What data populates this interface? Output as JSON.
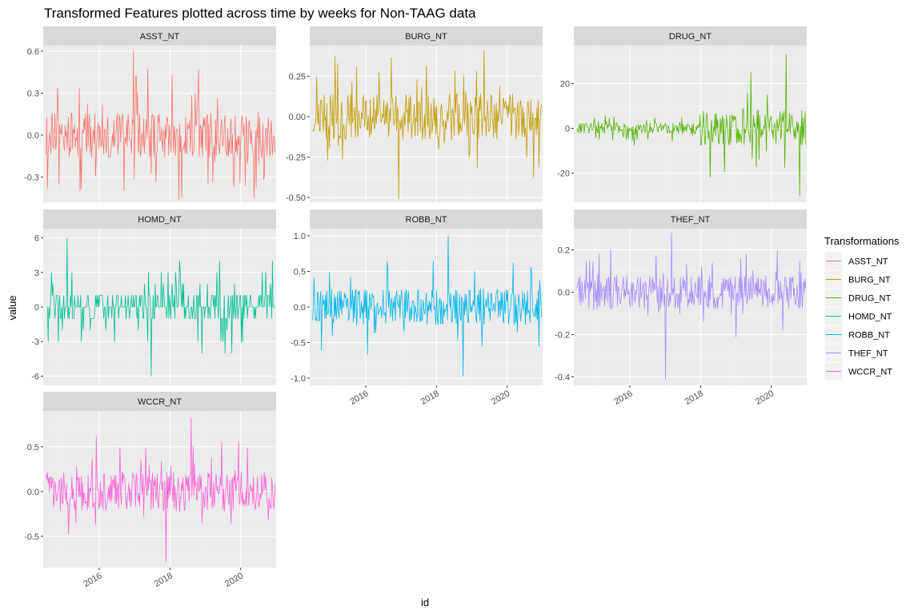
{
  "chart_data": {
    "type": "line",
    "title": "Transformed Features plotted across time by weeks for Non-TAAG data",
    "xlabel": "id",
    "ylabel": "value",
    "x_range": [
      "2014-06-01",
      "2021-01-01"
    ],
    "x_ticks": [
      {
        "date": "2016-01-01",
        "label": "2016"
      },
      {
        "date": "2018-01-01",
        "label": "2018"
      },
      {
        "date": "2020-01-01",
        "label": "2020"
      }
    ],
    "grid": true,
    "legend": {
      "title": "Transformations",
      "position": "right"
    },
    "facets": [
      {
        "name": "ASST_NT",
        "color": "#F8766D",
        "ylim": [
          -0.48,
          0.64
        ],
        "yticks": [
          {
            "v": -0.3,
            "label": "-0.3"
          },
          {
            "v": 0.0,
            "label": "0.0"
          },
          {
            "v": 0.3,
            "label": "0.3"
          },
          {
            "v": 0.6,
            "label": "0.6"
          }
        ],
        "amp": 0.16,
        "spike": 0.25,
        "max": 0.6,
        "min": -0.46,
        "max_at": "2016-12-15",
        "min_at": "2018-04-01"
      },
      {
        "name": "BURG_NT",
        "color": "#C49A00",
        "ylim": [
          -0.53,
          0.44
        ],
        "yticks": [
          {
            "v": -0.5,
            "label": "-0.50"
          },
          {
            "v": -0.25,
            "label": "-0.25"
          },
          {
            "v": 0.0,
            "label": "0.00"
          },
          {
            "v": 0.25,
            "label": "0.25"
          }
        ],
        "amp": 0.14,
        "spike": 0.2,
        "max": 0.41,
        "min": -0.51,
        "max_at": "2019-05-01",
        "min_at": "2016-12-01"
      },
      {
        "name": "DRUG_NT",
        "color": "#53B400",
        "ylim": [
          -33,
          37
        ],
        "yticks": [
          {
            "v": -20,
            "label": "-20"
          },
          {
            "v": 0,
            "label": "0"
          },
          {
            "v": 20,
            "label": "20"
          }
        ],
        "amp": 2.5,
        "spike": 4,
        "max": 33,
        "min": -30,
        "max_at": "2020-06-01",
        "min_at": "2020-10-15",
        "regime_date": "2018-01-01",
        "regime_amp": 8,
        "regime_spike": 12
      },
      {
        "name": "HOMD_NT",
        "color": "#00C094",
        "ylim": [
          -6.8,
          6.8
        ],
        "yticks": [
          {
            "v": -6,
            "label": "-6"
          },
          {
            "v": -3,
            "label": "-3"
          },
          {
            "v": 0,
            "label": "0"
          },
          {
            "v": 3,
            "label": "3"
          },
          {
            "v": 6,
            "label": "6"
          }
        ],
        "amp": 1.0,
        "spike": 2.5,
        "max": 6,
        "min": -6,
        "max_at": "2015-02-01",
        "min_at": "2017-06-15",
        "integer": true
      },
      {
        "name": "ROBB_NT",
        "color": "#00B6EB",
        "ylim": [
          -1.1,
          1.1
        ],
        "yticks": [
          {
            "v": -1.0,
            "label": "-1.0"
          },
          {
            "v": -0.5,
            "label": "-0.5"
          },
          {
            "v": 0.0,
            "label": "0.0"
          },
          {
            "v": 0.5,
            "label": "0.5"
          },
          {
            "v": 1.0,
            "label": "1.0"
          }
        ],
        "amp": 0.25,
        "spike": 0.35,
        "max": 1.0,
        "min": -0.97,
        "max_at": "2018-05-01",
        "min_at": "2018-10-01"
      },
      {
        "name": "THEF_NT",
        "color": "#A58AFF",
        "ylim": [
          -0.44,
          0.3
        ],
        "yticks": [
          {
            "v": -0.4,
            "label": "-0.4"
          },
          {
            "v": -0.2,
            "label": "-0.2"
          },
          {
            "v": 0.0,
            "label": "0.0"
          },
          {
            "v": 0.2,
            "label": "0.2"
          }
        ],
        "amp": 0.08,
        "spike": 0.1,
        "max": 0.28,
        "min": -0.41,
        "max_at": "2017-03-01",
        "min_at": "2017-01-01"
      },
      {
        "name": "WCCR_NT",
        "color": "#FB61D7",
        "ylim": [
          -0.85,
          0.9
        ],
        "yticks": [
          {
            "v": -0.5,
            "label": "-0.5"
          },
          {
            "v": 0.0,
            "label": "0.0"
          },
          {
            "v": 0.5,
            "label": "0.5"
          }
        ],
        "amp": 0.22,
        "spike": 0.3,
        "max": 0.82,
        "min": -0.78,
        "max_at": "2018-08-01",
        "min_at": "2017-11-15"
      }
    ]
  }
}
